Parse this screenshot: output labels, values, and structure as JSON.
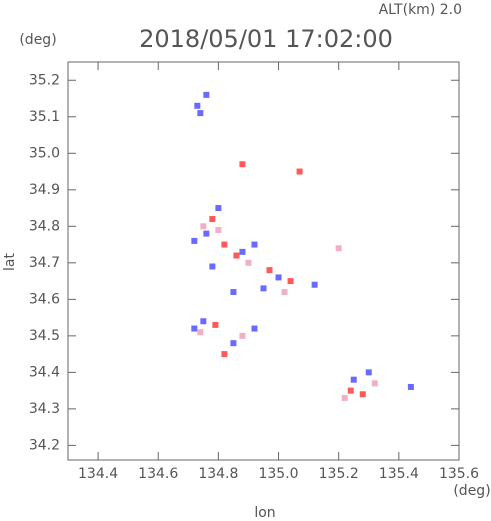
{
  "chart_data": {
    "type": "scatter",
    "title": "2018/05/01 17:02:00",
    "subtitle": "ALT(km) 2.0",
    "x_label": "lon",
    "y_label": "lat",
    "x_unit": "(deg)",
    "y_unit": "(deg)",
    "xlim": [
      134.3,
      135.6
    ],
    "ylim": [
      34.16,
      35.25
    ],
    "xticks": [
      134.4,
      134.6,
      134.8,
      {
        "value": 135.0,
        "label": "135.0"
      },
      135.2,
      135.4,
      135.6
    ],
    "yticks": [
      34.2,
      34.3,
      34.4,
      34.5,
      34.6,
      34.7,
      34.8,
      34.9,
      {
        "value": 35.0,
        "label": "35.0"
      },
      35.1,
      35.2
    ],
    "series": [
      {
        "color": "#6a6aff",
        "x": [
          134.73,
          134.76,
          134.74,
          134.8,
          134.76,
          134.72,
          134.88,
          134.92,
          134.85,
          134.95,
          135.0,
          135.12,
          134.78,
          134.75,
          134.72,
          134.92,
          134.85,
          135.3,
          135.25,
          135.44
        ],
        "y": [
          35.13,
          35.16,
          35.11,
          34.85,
          34.78,
          34.76,
          34.73,
          34.75,
          34.62,
          34.63,
          34.66,
          34.64,
          34.69,
          34.54,
          34.52,
          34.52,
          34.48,
          34.4,
          34.38,
          34.36
        ]
      },
      {
        "color": "#ff5a5a",
        "x": [
          134.88,
          135.07,
          134.78,
          134.82,
          134.86,
          134.97,
          135.04,
          134.79,
          134.82,
          135.24,
          135.28
        ],
        "y": [
          34.97,
          34.95,
          34.82,
          34.75,
          34.72,
          34.68,
          34.65,
          34.53,
          34.45,
          34.35,
          34.34
        ]
      },
      {
        "color": "#f0b0c8",
        "x": [
          134.8,
          134.9,
          135.02,
          134.75,
          134.88,
          134.74,
          135.22,
          135.32,
          135.2
        ],
        "y": [
          34.79,
          34.7,
          34.62,
          34.8,
          34.5,
          34.51,
          34.33,
          34.37,
          34.74
        ]
      }
    ]
  }
}
